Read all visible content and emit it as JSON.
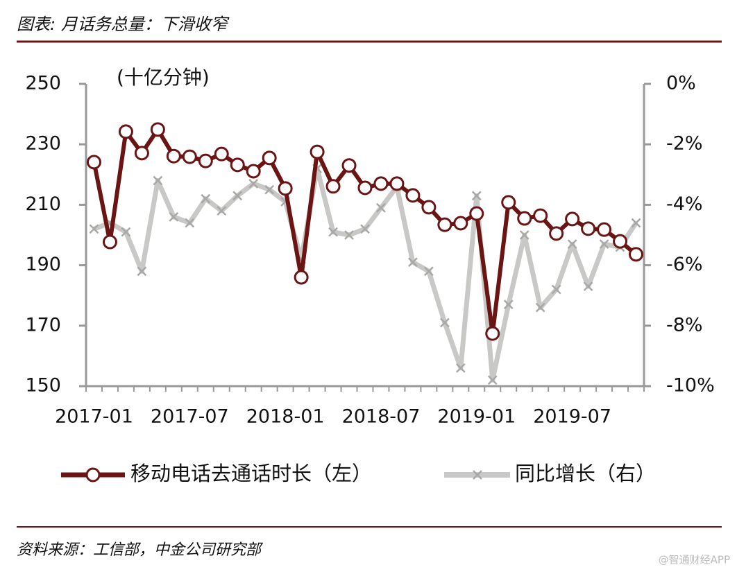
{
  "chart_data": {
    "type": "line",
    "title": "图表: 月话务总量：下滑收窄",
    "y_unit": "(十亿分钟)",
    "source": "资料来源：工信部，中金公司研究部",
    "watermark": "@智通财经APP",
    "categories": [
      "2017-01",
      null,
      null,
      null,
      null,
      null,
      "2017-07",
      null,
      null,
      null,
      null,
      null,
      "2018-01",
      null,
      null,
      null,
      null,
      null,
      "2018-07",
      null,
      null,
      null,
      null,
      null,
      "2019-01",
      null,
      null,
      null,
      null,
      null,
      "2019-07",
      null,
      null,
      null,
      null
    ],
    "series": [
      {
        "name": "移动电话去通话时长（左）",
        "color": "#6b1414",
        "axis": "y",
        "values": [
          224.1,
          197.7,
          234.2,
          227.1,
          234.9,
          226.1,
          225.9,
          224.5,
          226.8,
          223.2,
          221.1,
          225.5,
          215.4,
          186.0,
          227.5,
          216.1,
          223.0,
          215.6,
          217.0,
          217.0,
          213.1,
          209.2,
          203.4,
          203.9,
          207.1,
          167.4,
          210.8,
          205.5,
          206.4,
          200.5,
          205.3,
          202.1,
          201.8,
          197.9,
          193.6
        ]
      },
      {
        "name": "同比增长（右）",
        "color": "#c8c8c6",
        "axis": "y2",
        "values": [
          -4.8,
          -4.6,
          -4.9,
          -6.2,
          -3.2,
          -4.4,
          -4.6,
          -3.8,
          -4.2,
          -3.7,
          -3.3,
          -3.5,
          -3.9,
          -5.8,
          -2.8,
          -4.9,
          -5.0,
          -4.8,
          -4.1,
          -3.4,
          -5.9,
          -6.2,
          -7.9,
          -9.4,
          -3.7,
          -9.8,
          -7.3,
          -5.0,
          -7.4,
          -6.8,
          -5.3,
          -6.7,
          -5.3,
          -5.4,
          -4.6
        ]
      }
    ],
    "ylim": [
      150,
      250
    ],
    "yticks": [
      150,
      170,
      190,
      210,
      230,
      250
    ],
    "y2lim": [
      -10,
      0
    ],
    "y2ticks": [
      {
        "value": -10,
        "label": "-10%"
      },
      {
        "value": -8,
        "label": "-8%"
      },
      {
        "value": -6,
        "label": "-6%"
      },
      {
        "value": -4,
        "label": "-4%"
      },
      {
        "value": -2,
        "label": "-2%"
      },
      {
        "value": 0,
        "label": "0%"
      }
    ],
    "grid": false,
    "legend": "bottom"
  }
}
